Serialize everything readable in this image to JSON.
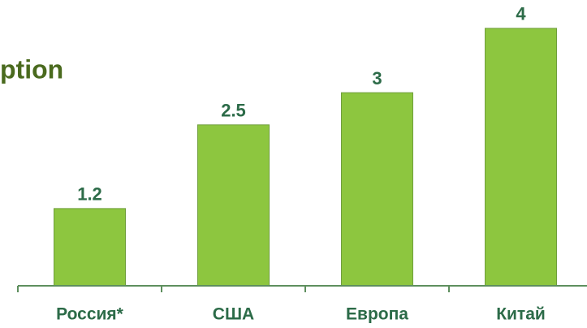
{
  "chart_data": {
    "type": "bar",
    "title": "ption",
    "categories": [
      "Россия*",
      "США",
      "Европа",
      "Китай"
    ],
    "values": [
      1.2,
      2.5,
      3,
      4
    ],
    "color": "#8dc63f",
    "ylim": [
      0,
      4.44
    ]
  }
}
